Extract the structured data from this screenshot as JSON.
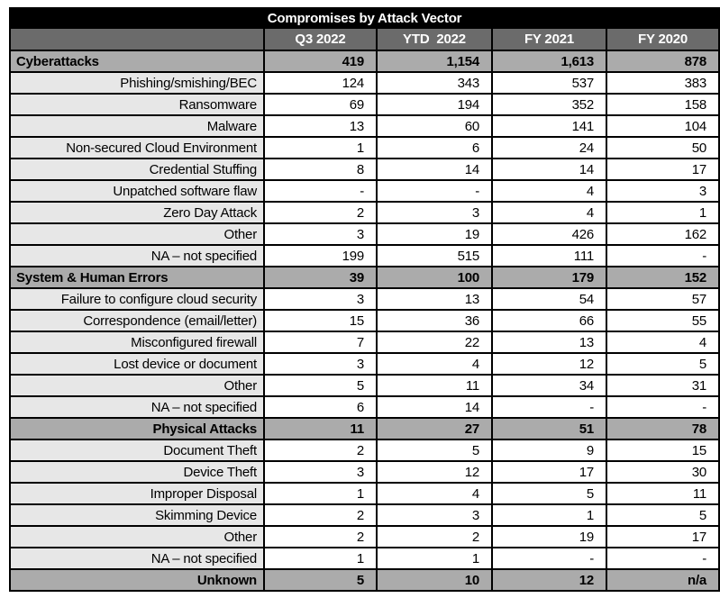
{
  "title": "Compromises by Attack Vector",
  "colors": {
    "title_bg": "#000000",
    "title_fg": "#ffffff",
    "header_bg": "#6b6b6b",
    "header_fg": "#ffffff",
    "section_bg": "#ababab",
    "label_bg": "#e7e7e7",
    "cell_bg": "#ffffff",
    "border": "#000000"
  },
  "chart_data": {
    "type": "table",
    "title": "Compromises by Attack Vector",
    "columns": [
      "Q3 2022",
      "YTD  2022",
      "FY 2021",
      "FY 2020"
    ],
    "rows": [
      {
        "label": "Cyberattacks",
        "style": "section",
        "label_align": "left",
        "values": [
          "419",
          "1,154",
          "1,613",
          "878"
        ]
      },
      {
        "label": "Phishing/smishing/BEC",
        "style": "item",
        "label_align": "right",
        "values": [
          "124",
          "343",
          "537",
          "383"
        ]
      },
      {
        "label": "Ransomware",
        "style": "item",
        "label_align": "right",
        "values": [
          "69",
          "194",
          "352",
          "158"
        ]
      },
      {
        "label": "Malware",
        "style": "item",
        "label_align": "right",
        "values": [
          "13",
          "60",
          "141",
          "104"
        ]
      },
      {
        "label": "Non-secured Cloud Environment",
        "style": "item",
        "label_align": "right",
        "values": [
          "1",
          "6",
          "24",
          "50"
        ]
      },
      {
        "label": "Credential Stuffing",
        "style": "item",
        "label_align": "right",
        "values": [
          "8",
          "14",
          "14",
          "17"
        ]
      },
      {
        "label": "Unpatched software flaw",
        "style": "item",
        "label_align": "right",
        "values": [
          "-",
          "-",
          "4",
          "3"
        ]
      },
      {
        "label": "Zero Day Attack",
        "style": "item",
        "label_align": "right",
        "values": [
          "2",
          "3",
          "4",
          "1"
        ]
      },
      {
        "label": "Other",
        "style": "item",
        "label_align": "right",
        "values": [
          "3",
          "19",
          "426",
          "162"
        ]
      },
      {
        "label": "NA – not specified",
        "style": "item",
        "label_align": "right",
        "values": [
          "199",
          "515",
          "111",
          "-"
        ]
      },
      {
        "label": "System & Human Errors",
        "style": "section",
        "label_align": "left",
        "values": [
          "39",
          "100",
          "179",
          "152"
        ]
      },
      {
        "label": "Failure to configure cloud security",
        "style": "item",
        "label_align": "right",
        "values": [
          "3",
          "13",
          "54",
          "57"
        ]
      },
      {
        "label": "Correspondence (email/letter)",
        "style": "item",
        "label_align": "right",
        "values": [
          "15",
          "36",
          "66",
          "55"
        ]
      },
      {
        "label": "Misconfigured firewall",
        "style": "item",
        "label_align": "right",
        "values": [
          "7",
          "22",
          "13",
          "4"
        ]
      },
      {
        "label": "Lost device or document",
        "style": "item",
        "label_align": "right",
        "values": [
          "3",
          "4",
          "12",
          "5"
        ]
      },
      {
        "label": "Other",
        "style": "item",
        "label_align": "right",
        "values": [
          "5",
          "11",
          "34",
          "31"
        ]
      },
      {
        "label": "NA – not specified",
        "style": "item",
        "label_align": "right",
        "values": [
          "6",
          "14",
          "-",
          "-"
        ]
      },
      {
        "label": "Physical Attacks",
        "style": "section",
        "label_align": "right",
        "values": [
          "11",
          "27",
          "51",
          "78"
        ]
      },
      {
        "label": "Document Theft",
        "style": "item",
        "label_align": "right",
        "values": [
          "2",
          "5",
          "9",
          "15"
        ]
      },
      {
        "label": "Device Theft",
        "style": "item",
        "label_align": "right",
        "values": [
          "3",
          "12",
          "17",
          "30"
        ]
      },
      {
        "label": "Improper Disposal",
        "style": "item",
        "label_align": "right",
        "values": [
          "1",
          "4",
          "5",
          "11"
        ]
      },
      {
        "label": "Skimming Device",
        "style": "item",
        "label_align": "right",
        "values": [
          "2",
          "3",
          "1",
          "5"
        ]
      },
      {
        "label": "Other",
        "style": "item",
        "label_align": "right",
        "values": [
          "2",
          "2",
          "19",
          "17"
        ]
      },
      {
        "label": "NA – not specified",
        "style": "item",
        "label_align": "right",
        "values": [
          "1",
          "1",
          "-",
          "-"
        ]
      },
      {
        "label": "Unknown",
        "style": "section",
        "label_align": "right",
        "values": [
          "5",
          "10",
          "12",
          "n/a"
        ]
      }
    ]
  }
}
